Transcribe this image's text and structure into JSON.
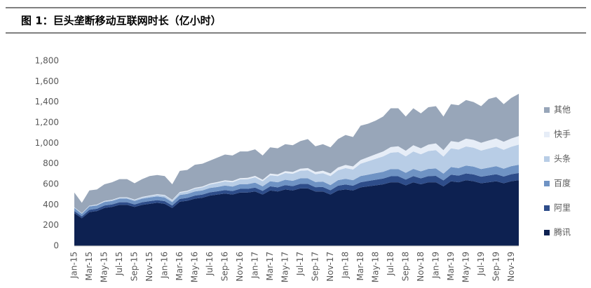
{
  "chart_data": {
    "type": "stacked_area",
    "title": "图 1：巨头垄断移动互联网时长（亿小时）",
    "categories": [
      "Jan-15",
      null,
      "Mar-15",
      null,
      "May-15",
      null,
      "Jul-15",
      null,
      "Sep-15",
      null,
      "Nov-15",
      null,
      "Jan-16",
      null,
      "Mar-16",
      null,
      "May-16",
      null,
      "Jul-16",
      null,
      "Sep-16",
      null,
      "Nov-16",
      null,
      "Jan-17",
      null,
      "Mar-17",
      null,
      "May-17",
      null,
      "Jul-17",
      null,
      "Sep-17",
      null,
      "Nov-17",
      null,
      "Jan-18",
      null,
      "Mar-18",
      null,
      "May-18",
      null,
      "Jul-18",
      null,
      "Sep-18",
      null,
      "Nov-18",
      null,
      "Jan-19",
      null,
      "Mar-19",
      null,
      "May-19",
      null,
      "Jul-19",
      null,
      "Sep-19",
      null,
      "Nov-19",
      null
    ],
    "series": [
      {
        "name": "腾讯",
        "color": "#0d2151",
        "values": [
          320,
          270,
          330,
          340,
          370,
          380,
          400,
          400,
          380,
          400,
          410,
          420,
          410,
          370,
          430,
          440,
          460,
          470,
          490,
          500,
          510,
          500,
          520,
          520,
          530,
          500,
          540,
          530,
          550,
          540,
          560,
          560,
          530,
          530,
          500,
          540,
          550,
          540,
          570,
          580,
          590,
          600,
          620,
          620,
          590,
          620,
          600,
          620,
          620,
          580,
          630,
          620,
          640,
          630,
          610,
          620,
          630,
          610,
          630,
          640
        ]
      },
      {
        "name": "阿里",
        "color": "#2e4d8a",
        "values": [
          20,
          18,
          22,
          22,
          24,
          24,
          25,
          25,
          24,
          25,
          26,
          26,
          26,
          24,
          28,
          28,
          30,
          30,
          32,
          32,
          34,
          34,
          36,
          36,
          38,
          36,
          40,
          40,
          42,
          42,
          44,
          44,
          42,
          44,
          42,
          46,
          48,
          46,
          50,
          52,
          54,
          56,
          58,
          58,
          56,
          60,
          58,
          60,
          62,
          58,
          64,
          64,
          66,
          66,
          64,
          66,
          68,
          66,
          68,
          70
        ]
      },
      {
        "name": "百度",
        "color": "#6f93c4",
        "values": [
          30,
          25,
          32,
          32,
          34,
          34,
          35,
          35,
          34,
          35,
          36,
          36,
          36,
          32,
          38,
          38,
          40,
          40,
          42,
          42,
          44,
          44,
          46,
          46,
          48,
          44,
          50,
          50,
          52,
          52,
          54,
          54,
          50,
          52,
          50,
          54,
          56,
          54,
          60,
          62,
          64,
          66,
          70,
          70,
          66,
          70,
          68,
          70,
          72,
          66,
          74,
          74,
          76,
          76,
          74,
          76,
          78,
          76,
          78,
          80
        ]
      },
      {
        "name": "头条",
        "color": "#b8cde6",
        "values": [
          5,
          5,
          6,
          6,
          7,
          8,
          9,
          10,
          10,
          12,
          14,
          16,
          18,
          16,
          22,
          24,
          28,
          30,
          34,
          38,
          40,
          42,
          46,
          48,
          52,
          50,
          58,
          60,
          66,
          68,
          74,
          78,
          76,
          82,
          88,
          96,
          104,
          104,
          120,
          130,
          140,
          150,
          160,
          166,
          160,
          170,
          166,
          174,
          178,
          166,
          182,
          180,
          186,
          184,
          180,
          186,
          190,
          184,
          190,
          196
        ]
      },
      {
        "name": "快手",
        "color": "#e6edf7",
        "values": [
          2,
          2,
          2,
          3,
          3,
          3,
          4,
          4,
          4,
          5,
          5,
          6,
          6,
          6,
          7,
          8,
          8,
          9,
          10,
          10,
          11,
          12,
          12,
          13,
          14,
          14,
          16,
          16,
          18,
          18,
          20,
          22,
          22,
          24,
          26,
          28,
          30,
          30,
          36,
          40,
          44,
          48,
          54,
          56,
          54,
          60,
          58,
          62,
          66,
          62,
          70,
          72,
          76,
          76,
          76,
          78,
          80,
          78,
          80,
          84
        ]
      },
      {
        "name": "其他",
        "color": "#98a6b9",
        "values": [
          143,
          100,
          148,
          147,
          162,
          171,
          177,
          176,
          158,
          173,
          189,
          186,
          184,
          152,
          205,
          202,
          224,
          221,
          222,
          238,
          251,
          248,
          260,
          257,
          258,
          236,
          256,
          254,
          262,
          260,
          268,
          282,
          250,
          258,
          254,
          276,
          292,
          286,
          334,
          326,
          328,
          340,
          378,
          370,
          334,
          360,
          340,
          364,
          362,
          328,
          360,
          360,
          376,
          368,
          356,
          404,
          404,
          366,
          394,
          410
        ]
      }
    ],
    "ylim": [
      0,
      1800
    ],
    "yticks": [
      0,
      200,
      400,
      600,
      800,
      {
        "value": 1000,
        "label": "1,000"
      },
      {
        "value": 1200,
        "label": "1,200"
      },
      {
        "value": 1400,
        "label": "1,400"
      },
      {
        "value": 1600,
        "label": "1,600"
      },
      {
        "value": 1800,
        "label": "1,800"
      }
    ]
  }
}
